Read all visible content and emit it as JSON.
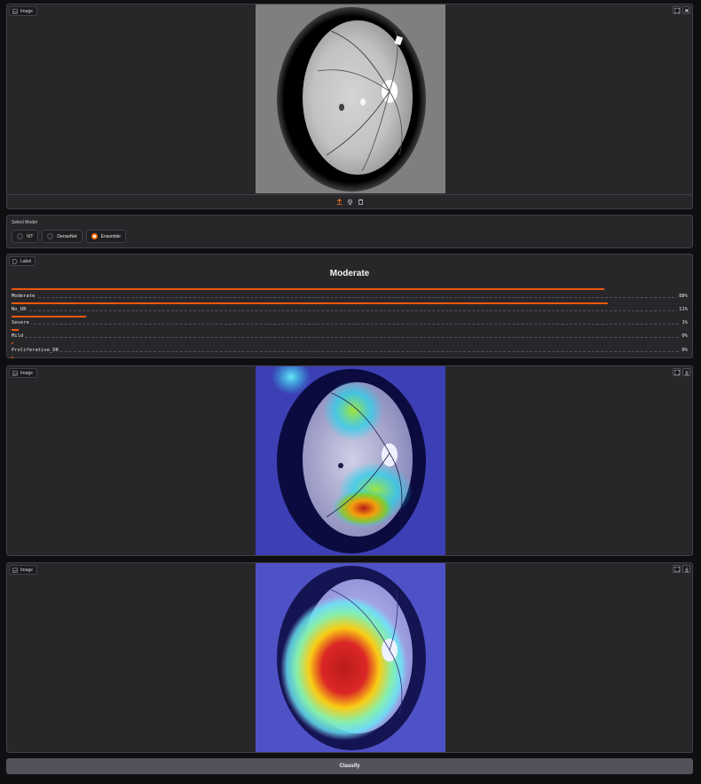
{
  "input_image": {
    "label": "Image"
  },
  "model_select": {
    "title": "Select Model",
    "options": [
      {
        "label": "ViT",
        "selected": false
      },
      {
        "label": "DenseNet",
        "selected": false
      },
      {
        "label": "Ensemble",
        "selected": true
      }
    ]
  },
  "label_output": {
    "label": "Label",
    "prediction": "Moderate",
    "confidences": [
      {
        "name": "Moderate",
        "percent": "88%",
        "value": 0.88
      },
      {
        "name": "No_DR",
        "percent": "11%",
        "value": 0.11
      },
      {
        "name": "Severe",
        "percent": "1%",
        "value": 0.01
      },
      {
        "name": "Mild",
        "percent": "0%",
        "value": 0.0
      },
      {
        "name": "Proliferative_DR",
        "percent": "0%",
        "value": 0.0
      }
    ]
  },
  "heatmap_1": {
    "label": "Image"
  },
  "heatmap_2": {
    "label": "Image"
  },
  "classify_button": {
    "label": "Classify"
  },
  "colors": {
    "accent": "#ea580c",
    "panel": "#27272a",
    "background": "#0f0f11"
  }
}
